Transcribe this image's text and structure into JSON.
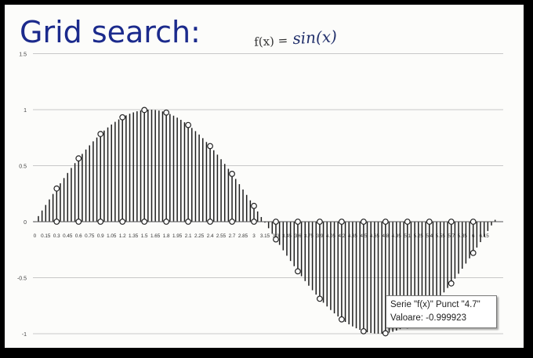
{
  "title": "Grid search:",
  "formula": {
    "lead": "f(x) =",
    "expr": "sin(x)"
  },
  "tooltip": {
    "line1": "Serie \"f(x)\" Punct \"4.7\"",
    "line2": "Valoare: -0.999923"
  },
  "colors": {
    "title": "#1b2a8c",
    "bars": "#1e1e1e",
    "grid": "#c8c8c8",
    "markers": "#222222"
  },
  "chart_data": {
    "type": "bar",
    "title": "",
    "xlabel": "",
    "ylabel": "",
    "ylim": [
      -1,
      1.5
    ],
    "yticks": [
      1.5,
      1,
      0.5,
      0,
      -0.5,
      -1
    ],
    "ytick_labels": [
      "1.5",
      "1",
      "0.5",
      "0",
      "-0.5",
      "-1"
    ],
    "grid": true,
    "x_start": 0,
    "x_step": 0.05,
    "x_count": 127,
    "visible_xtick_labels": [
      "0",
      "0.15",
      "0.3",
      "0.45",
      "0.6",
      "0.75",
      "0.9",
      "1.05",
      "1.2",
      "1.35",
      "1.5",
      "1.65",
      "1.8",
      "1.95",
      "2.1",
      "2.25",
      "2.4",
      "2.55",
      "2.7",
      "2.85",
      "3",
      "3.15",
      "3.3",
      "3.45",
      "3.6",
      "3.75",
      "3.9",
      "4.05",
      "4.2",
      "4.35",
      "4.5",
      "4.65",
      "4.8",
      "4.95",
      "5.1",
      "5.25",
      "5.4",
      "5.55",
      "5.7",
      "5.85",
      "6",
      "6.15"
    ],
    "series": [
      {
        "name": "f(x)",
        "function": "sin(x)"
      }
    ],
    "markers": {
      "x": [
        0.3,
        0.6,
        0.9,
        1.2,
        1.5,
        1.8,
        2.1,
        2.4,
        2.7,
        3.0,
        3.3,
        3.6,
        3.9,
        4.2,
        4.5,
        4.8,
        5.1,
        5.4,
        5.7,
        6.0
      ],
      "y": [
        0.296,
        0.565,
        0.783,
        0.932,
        0.997,
        0.974,
        0.863,
        0.675,
        0.427,
        0.141,
        -0.158,
        -0.443,
        -0.688,
        -0.872,
        -0.978,
        -0.996,
        -0.926,
        -0.773,
        -0.551,
        -0.279
      ]
    }
  }
}
